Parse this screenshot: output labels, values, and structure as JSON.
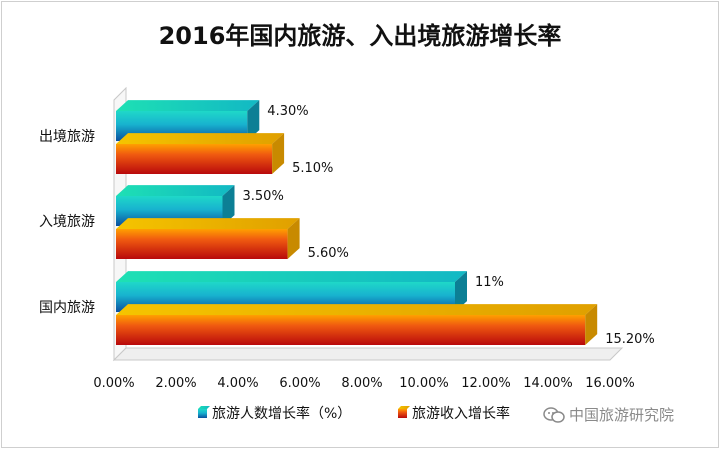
{
  "chart_data": {
    "type": "bar",
    "orientation": "horizontal",
    "title": "2016年国内旅游、入出境旅游增长率",
    "categories": [
      "出境旅游",
      "入境旅游",
      "国内旅游"
    ],
    "series": [
      {
        "name": "旅游人数增长率（%）",
        "values": [
          4.3,
          3.5,
          11.0
        ],
        "labels": [
          "4.30%",
          "3.50%",
          "11%"
        ],
        "color": "#18A6C8"
      },
      {
        "name": "旅游收入增长率",
        "values": [
          5.1,
          5.6,
          15.2
        ],
        "labels": [
          "5.10%",
          "5.60%",
          "15.20%"
        ],
        "color": "#E8380D"
      }
    ],
    "xlim": [
      0,
      16
    ],
    "xticks": [
      "0.00%",
      "2.00%",
      "4.00%",
      "6.00%",
      "8.00%",
      "10.00%",
      "12.00%",
      "14.00%",
      "16.00%"
    ],
    "legend_position": "bottom",
    "grid": false,
    "style": "3d-cylinder-bars"
  },
  "watermark": {
    "text": "中国旅游研究院",
    "icon": "wechat-icon"
  }
}
